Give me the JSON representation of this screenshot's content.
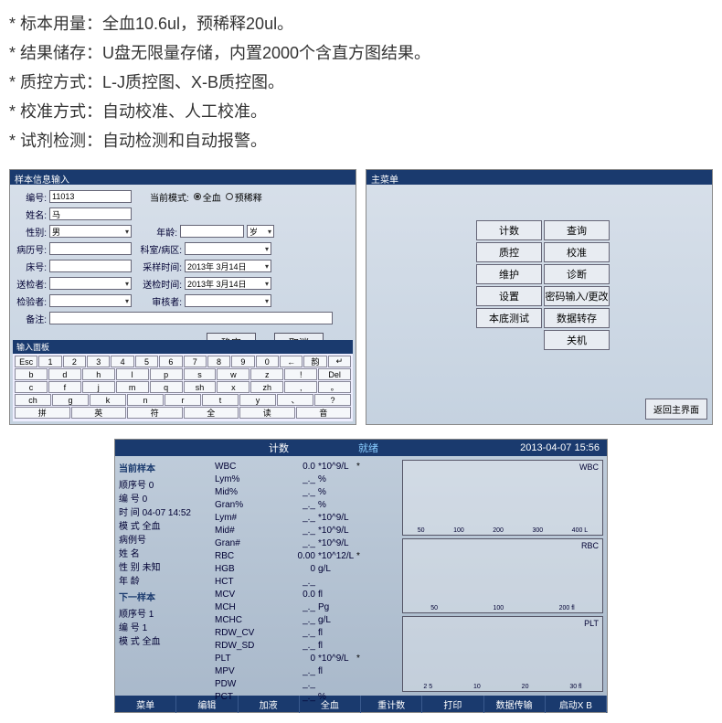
{
  "specs": [
    "* 标本用量：全血10.6ul，预稀释20ul。",
    "*  结果储存：U盘无限量存储，内置2000个含直方图结果。",
    "*  质控方式：L-J质控图、X-B质控图。",
    "*  校准方式：自动校准、人工校准。",
    "* 试剂检测：自动检测和自动报警。"
  ],
  "form": {
    "title": "样本信息输入",
    "id_lbl": "编号:",
    "id_val": "11013",
    "mode_lbl": "当前模式:",
    "mode1": "全血",
    "mode2": "预稀释",
    "name_lbl": "姓名:",
    "name_val": "马",
    "sex_lbl": "性别:",
    "sex_val": "男",
    "age_lbl": "年龄:",
    "age_unit": "岁",
    "hist_lbl": "病历号:",
    "dept_lbl": "科室/病区:",
    "bed_lbl": "床号:",
    "samp_lbl": "采样时间:",
    "samp_val": "2013年 3月14日",
    "sender_lbl": "送检者:",
    "send_lbl": "送检时间:",
    "send_val": "2013年 3月14日",
    "chk_lbl": "检验者:",
    "rev_lbl": "审核者:",
    "note_lbl": "备注:",
    "ok": "确定",
    "cancel": "取消",
    "kbd_title": "输入面板",
    "kbd_r1": [
      "Esc",
      "1",
      "2",
      "3",
      "4",
      "5",
      "6",
      "7",
      "8",
      "9",
      "0",
      "←",
      "韵",
      "↵"
    ],
    "kbd_r2": [
      "b",
      "d",
      "h",
      "l",
      "p",
      "s",
      "w",
      "z",
      "!",
      "Del"
    ],
    "kbd_r3": [
      "c",
      "f",
      "j",
      "m",
      "q",
      "sh",
      "x",
      "zh",
      ",",
      "。"
    ],
    "kbd_r4": [
      "ch",
      "g",
      "k",
      "n",
      "r",
      "t",
      "y",
      "、",
      "?"
    ],
    "kbd_r5": [
      "拼",
      "英",
      "符",
      "全",
      "读",
      "音"
    ]
  },
  "menu": {
    "title": "主菜单",
    "items": [
      "计数",
      "查询",
      "质控",
      "校准",
      "维护",
      "诊断",
      "设置",
      "密码输入/更改",
      "本底测试",
      "数据转存",
      "关机"
    ],
    "back": "返回主界面"
  },
  "result": {
    "tb_count": "计数",
    "tb_ready": "就绪",
    "tb_time": "2013-04-07 15:56",
    "cur_h": "当前样本",
    "seq_lbl": "顺序号",
    "seq_v": "0",
    "id_lbl": "编 号",
    "id_v": "0",
    "time_lbl": "时 间",
    "time_v": "04-07 14:52",
    "mode_lbl": "模 式",
    "mode_v": "全血",
    "hist_lbl": "病例号",
    "name_lbl": "姓 名",
    "sex_lbl": "性 别",
    "sex_v": "未知",
    "age_lbl": "年 龄",
    "next_h": "下一样本",
    "nseq_lbl": "顺序号",
    "nseq_v": "1",
    "nid_lbl": "编 号",
    "nid_v": "1",
    "nmode_lbl": "模 式",
    "nmode_v": "全血",
    "params": [
      {
        "n": "WBC",
        "v": "0.0",
        "u": "*10^9/L",
        "m": "*"
      },
      {
        "n": "Lym%",
        "v": "_._",
        "u": "%"
      },
      {
        "n": "Mid%",
        "v": "_._",
        "u": "%"
      },
      {
        "n": "Gran%",
        "v": "_._",
        "u": "%"
      },
      {
        "n": "Lym#",
        "v": "_._",
        "u": "*10^9/L"
      },
      {
        "n": "Mid#",
        "v": "_._",
        "u": "*10^9/L"
      },
      {
        "n": "Gran#",
        "v": "_._",
        "u": "*10^9/L"
      },
      {
        "n": "RBC",
        "v": "0.00",
        "u": "*10^12/L",
        "m": "*"
      },
      {
        "n": "HGB",
        "v": "0",
        "u": "g/L"
      },
      {
        "n": "HCT",
        "v": "_._",
        "u": ""
      },
      {
        "n": "MCV",
        "v": "0.0",
        "u": "fl"
      },
      {
        "n": "MCH",
        "v": "_._",
        "u": "Pg"
      },
      {
        "n": "MCHC",
        "v": "_._",
        "u": "g/L"
      },
      {
        "n": "RDW_CV",
        "v": "_._",
        "u": "fl"
      },
      {
        "n": "RDW_SD",
        "v": "_._",
        "u": "fl"
      },
      {
        "n": "PLT",
        "v": "0",
        "u": "*10^9/L",
        "m": "*"
      },
      {
        "n": "MPV",
        "v": "_._",
        "u": "fl"
      },
      {
        "n": "PDW",
        "v": "_._",
        "u": ""
      },
      {
        "n": "PCT",
        "v": "_._",
        "u": "%"
      }
    ],
    "chart_labels": [
      "WBC",
      "RBC",
      "PLT"
    ],
    "axis_wbc": [
      "50",
      "100",
      "200",
      "300",
      "400 L"
    ],
    "axis_rbc": [
      "50",
      "100",
      "200 fl"
    ],
    "axis_plt": [
      "2 5",
      "10",
      "20",
      "30 fl"
    ],
    "bottom": [
      "菜单",
      "编辑",
      "加液",
      "全血",
      "重计数",
      "打印",
      "数据传输",
      "启动X B"
    ]
  }
}
